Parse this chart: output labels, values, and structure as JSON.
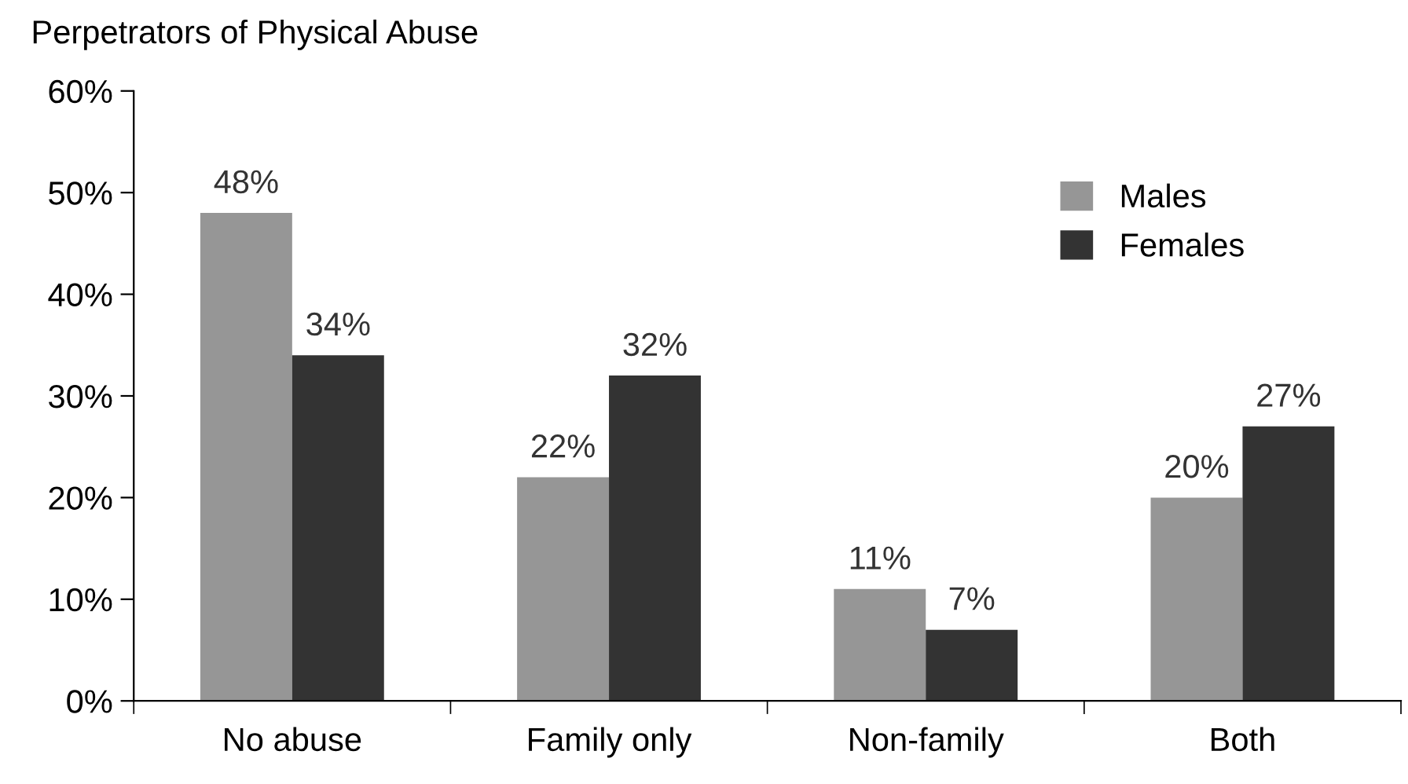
{
  "chart_data": {
    "type": "bar",
    "title": "Perpetrators of Physical Abuse",
    "categories": [
      "No abuse",
      "Family only",
      "Non-family",
      "Both"
    ],
    "series": [
      {
        "name": "Males",
        "color": "#969696",
        "values": [
          48,
          22,
          11,
          20
        ],
        "value_labels": [
          "48%",
          "22%",
          "11%",
          "20%"
        ]
      },
      {
        "name": "Females",
        "color": "#333333",
        "values": [
          34,
          32,
          7,
          27
        ],
        "value_labels": [
          "34%",
          "32%",
          "7%",
          "27%"
        ]
      }
    ],
    "ylim": [
      0,
      60
    ],
    "yticks": [
      {
        "value": 0,
        "label": "0%"
      },
      {
        "value": 10,
        "label": "10%"
      },
      {
        "value": 20,
        "label": "20%"
      },
      {
        "value": 30,
        "label": "30%"
      },
      {
        "value": 40,
        "label": "40%"
      },
      {
        "value": 50,
        "label": "50%"
      },
      {
        "value": 60,
        "label": "60%"
      }
    ],
    "legend": "top right",
    "grid": false
  }
}
